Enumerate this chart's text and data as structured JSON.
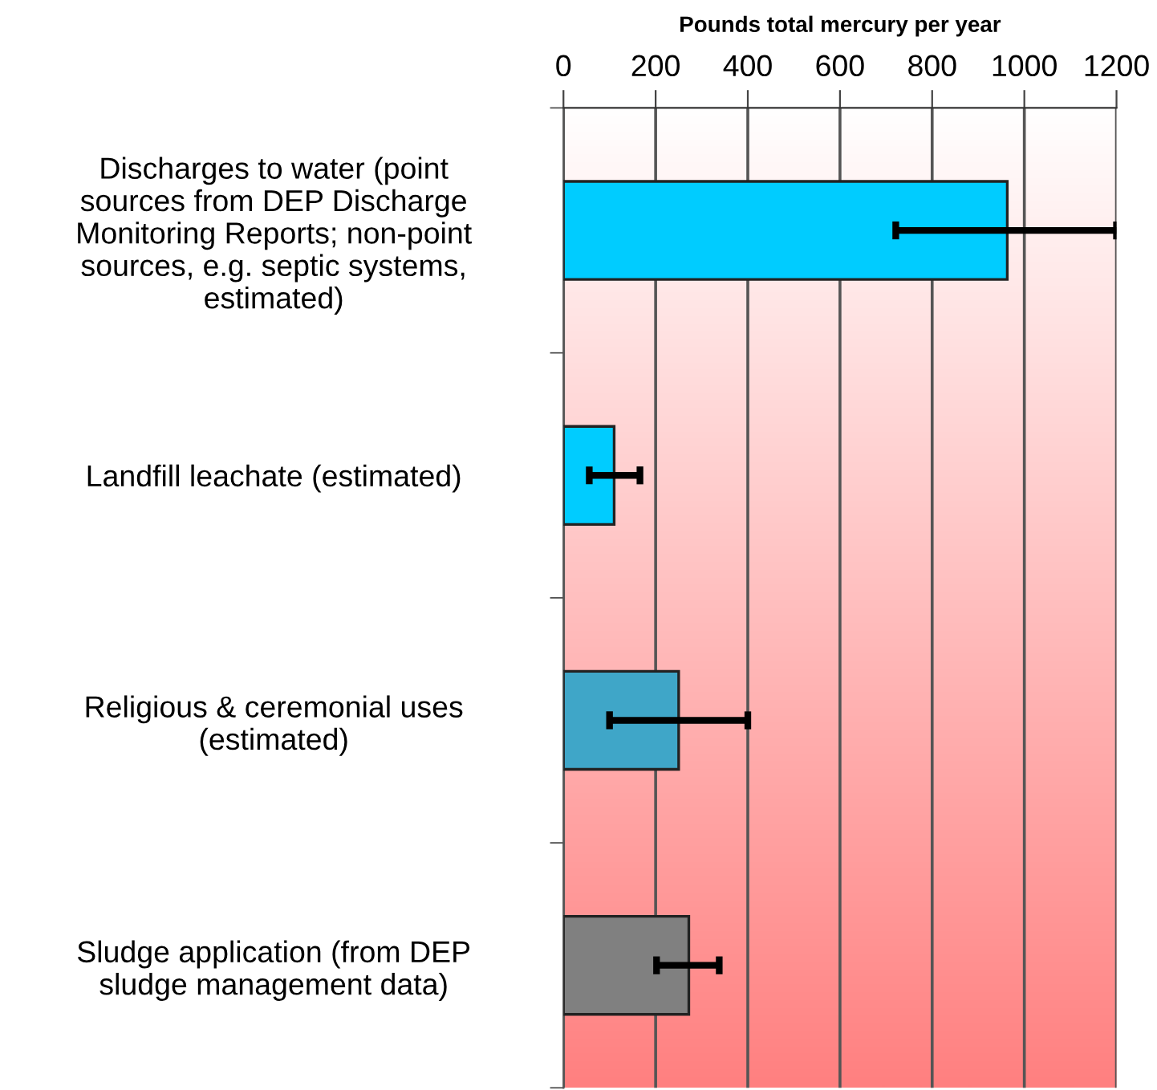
{
  "chart_data": {
    "type": "bar",
    "orientation": "horizontal",
    "xlabel": "Pounds total mercury per year",
    "categories": [
      "Discharges to water (point\nsources from DEP Discharge\nMonitoring Reports; non-point\nsources, e.g. septic systems,\nestimated)",
      "Landfill leachate (estimated)",
      "Religious & ceremonial uses\n(estimated)",
      "Sludge application (from DEP\nsludge management data)"
    ],
    "values": [
      963,
      110,
      250,
      272
    ],
    "errors": [
      [
        721,
        1200
      ],
      [
        56,
        166
      ],
      [
        100,
        400
      ],
      [
        202,
        338
      ]
    ],
    "colors": [
      "#00ccff",
      "#00ccff",
      "#3fa6c8",
      "#808080"
    ],
    "xlim": [
      0,
      1200
    ],
    "xticks": [
      0,
      200,
      400,
      600,
      800,
      1000,
      1200
    ],
    "grid": "x"
  }
}
